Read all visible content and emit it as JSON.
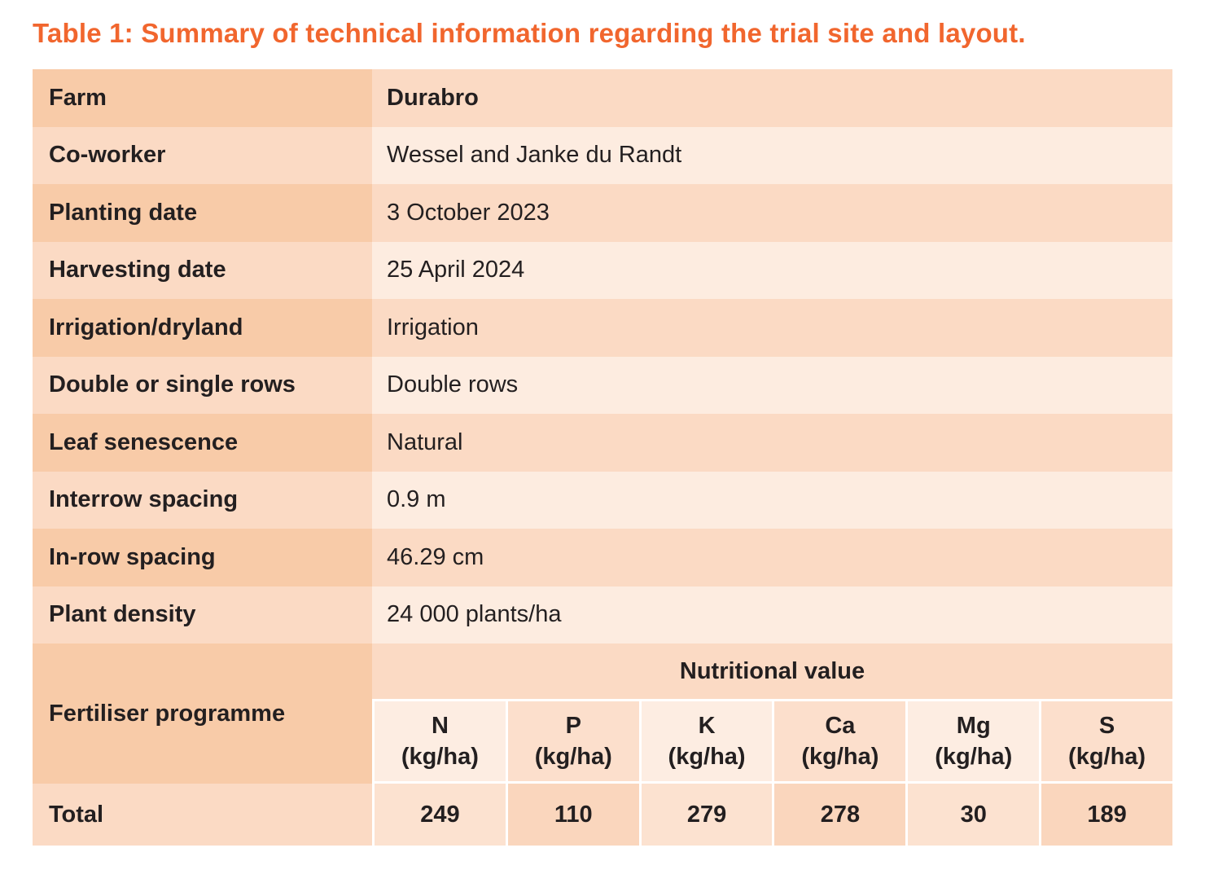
{
  "title": "Table 1: Summary of technical information regarding the trial site and layout.",
  "info_rows": [
    {
      "label": "Farm",
      "value": "Durabro"
    },
    {
      "label": "Co-worker",
      "value": "Wessel and Janke du Randt"
    },
    {
      "label": "Planting date",
      "value": "3 October 2023"
    },
    {
      "label": "Harvesting date",
      "value": "25 April 2024"
    },
    {
      "label": "Irrigation/dryland",
      "value": "Irrigation"
    },
    {
      "label": "Double or single rows",
      "value": "Double rows"
    },
    {
      "label": "Leaf senescence",
      "value": "Natural"
    },
    {
      "label": "Interrow spacing",
      "value": "0.9 m"
    },
    {
      "label": "In-row spacing",
      "value": "46.29 cm"
    },
    {
      "label": "Plant density",
      "value": "24 000 plants/ha"
    }
  ],
  "fertiliser": {
    "label": "Fertiliser programme",
    "banner": "Nutritional value",
    "total_label": "Total",
    "nutrients": [
      {
        "element": "N",
        "unit": "(kg/ha)",
        "total": "249"
      },
      {
        "element": "P",
        "unit": "(kg/ha)",
        "total": "110"
      },
      {
        "element": "K",
        "unit": "(kg/ha)",
        "total": "279"
      },
      {
        "element": "Ca",
        "unit": "(kg/ha)",
        "total": "278"
      },
      {
        "element": "Mg",
        "unit": "(kg/ha)",
        "total": "30"
      },
      {
        "element": "S",
        "unit": "(kg/ha)",
        "total": "189"
      }
    ]
  },
  "colors": {
    "title_orange": "#F1662E",
    "cell_dark": "#F8CBA8",
    "cell_medium": "#FBDAC4",
    "cell_light": "#FDECE0",
    "header_light": "#FDEDE2",
    "header_dark": "#FCDFCC",
    "total_light": "#FCE2D0",
    "total_dark": "#FAD6BD",
    "text": "#231F20"
  }
}
